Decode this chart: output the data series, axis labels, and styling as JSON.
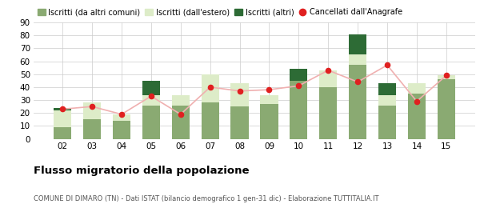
{
  "years": [
    "02",
    "03",
    "04",
    "05",
    "06",
    "07",
    "08",
    "09",
    "10",
    "11",
    "12",
    "13",
    "14",
    "15"
  ],
  "iscritti_altri_comuni": [
    9,
    15,
    14,
    26,
    26,
    28,
    25,
    27,
    45,
    40,
    57,
    26,
    35,
    46
  ],
  "iscritti_estero": [
    13,
    13,
    5,
    8,
    8,
    22,
    18,
    7,
    0,
    13,
    8,
    8,
    8,
    3
  ],
  "iscritti_altri": [
    2,
    0,
    0,
    11,
    0,
    0,
    0,
    0,
    9,
    0,
    16,
    9,
    0,
    0
  ],
  "cancellati": [
    23,
    25,
    19,
    33,
    19,
    40,
    37,
    38,
    41,
    53,
    44,
    57,
    29,
    49
  ],
  "color_altri_comuni": "#8aaa72",
  "color_estero": "#ddecc8",
  "color_altri": "#2d6b35",
  "color_cancellati": "#e02020",
  "color_line": "#f0b0b0",
  "title": "Flusso migratorio della popolazione",
  "subtitle": "COMUNE DI DIMARO (TN) - Dati ISTAT (bilancio demografico 1 gen-31 dic) - Elaborazione TUTTITALIA.IT",
  "legend_labels": [
    "Iscritti (da altri comuni)",
    "Iscritti (dall'estero)",
    "Iscritti (altri)",
    "Cancellati dall'Anagrafe"
  ],
  "ylim": [
    0,
    90
  ],
  "yticks": [
    0,
    10,
    20,
    30,
    40,
    50,
    60,
    70,
    80,
    90
  ]
}
